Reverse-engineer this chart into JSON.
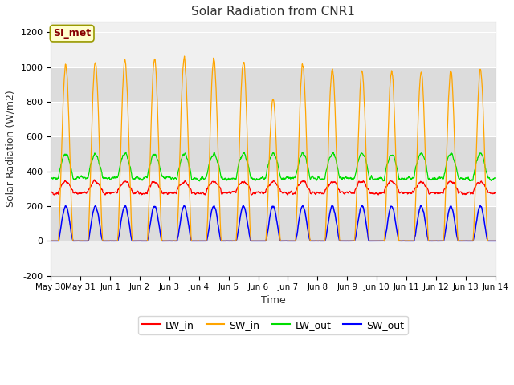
{
  "title": "Solar Radiation from CNR1",
  "xlabel": "Time",
  "ylabel": "Solar Radiation (W/m2)",
  "ylim": [
    -200,
    1260
  ],
  "yticks": [
    -200,
    0,
    200,
    400,
    600,
    800,
    1000,
    1200
  ],
  "background_color": "#ffffff",
  "plot_bg_color": "#f0f0f0",
  "annotation_text": "SI_met",
  "annotation_bg": "#ffffcc",
  "annotation_border": "#999900",
  "annotation_text_color": "#880000",
  "line_colors": {
    "LW_in": "#ff0000",
    "SW_in": "#ffa500",
    "LW_out": "#00dd00",
    "SW_out": "#0000ff"
  },
  "band_colors": [
    "#f0f0f0",
    "#dcdcdc"
  ],
  "x_tick_labels": [
    "May 30",
    "May 31",
    "Jun 1",
    "Jun 2",
    "Jun 3",
    "Jun 4",
    "Jun 5",
    "Jun 6",
    "Jun 7",
    "Jun 8",
    "Jun 9",
    "Jun 10",
    "Jun 11",
    "Jun 12",
    "Jun 13",
    "Jun 14"
  ],
  "n_days": 15,
  "pts_per_day": 144,
  "seed": 42
}
